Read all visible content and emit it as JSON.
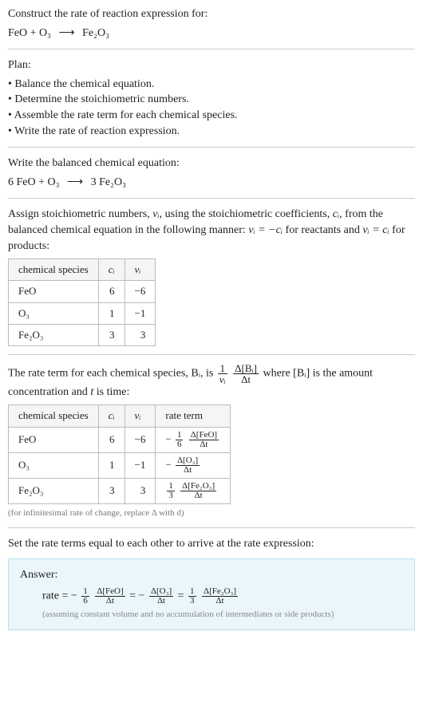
{
  "page": {
    "background_color": "#ffffff",
    "text_color": "#222222",
    "border_color": "#cccccc",
    "table_border_color": "#bbbbbb",
    "table_header_bg": "#f5f5f5",
    "footnote_color": "#777777",
    "answer_bg": "#eaf6fa",
    "answer_border": "#bde0ec",
    "font_family": "Georgia, serif",
    "body_fontsize": 14,
    "table_fontsize": 13,
    "frac_fontsize": 11,
    "footnote_fontsize": 11
  },
  "prompt": {
    "title": "Construct the rate of reaction expression for:",
    "eq_lhs": "FeO + O₃",
    "eq_arrow": "⟶",
    "eq_rhs": "Fe₂O₃"
  },
  "plan": {
    "title": "Plan:",
    "items": [
      "Balance the chemical equation.",
      "Determine the stoichiometric numbers.",
      "Assemble the rate term for each chemical species.",
      "Write the rate of reaction expression."
    ]
  },
  "balanced": {
    "title": "Write the balanced chemical equation:",
    "eq_lhs": "6 FeO + O₃",
    "eq_arrow": "⟶",
    "eq_rhs": "3 Fe₂O₃"
  },
  "stoich_intro": {
    "p1a": "Assign stoichiometric numbers, ",
    "nu": "νᵢ",
    "p1b": ", using the stoichiometric coefficients, ",
    "ci": "cᵢ",
    "p1c": ", from the balanced chemical equation in the following manner: ",
    "rel_react": "νᵢ = −cᵢ",
    "p1d": " for reactants and ",
    "rel_prod": "νᵢ = cᵢ",
    "p1e": " for products:"
  },
  "stoich_table": {
    "headers": {
      "h1": "chemical species",
      "h2": "cᵢ",
      "h3": "νᵢ"
    },
    "rows": [
      {
        "species": "FeO",
        "ci": "6",
        "nui": "−6"
      },
      {
        "species": "O₃",
        "ci": "1",
        "nui": "−1"
      },
      {
        "species": "Fe₂O₃",
        "ci": "3",
        "nui": "3"
      }
    ]
  },
  "rate_intro": {
    "p1a": "The rate term for each chemical species, ",
    "bi": "Bᵢ",
    "p1b": ", is ",
    "frac1_n": "1",
    "frac1_d": "νᵢ",
    "frac2_n": "Δ[Bᵢ]",
    "frac2_d": "Δt",
    "p1c": " where [Bᵢ] is the amount concentration and ",
    "t": "t",
    "p1d": " is time:"
  },
  "rate_table": {
    "headers": {
      "h1": "chemical species",
      "h2": "cᵢ",
      "h3": "νᵢ",
      "h4": "rate term"
    },
    "rows": [
      {
        "species": "FeO",
        "ci": "6",
        "nui": "−6",
        "rt_sign": "−",
        "rt_f1n": "1",
        "rt_f1d": "6",
        "rt_f2n": "Δ[FeO]",
        "rt_f2d": "Δt"
      },
      {
        "species": "O₃",
        "ci": "1",
        "nui": "−1",
        "rt_sign": "−",
        "rt_f1n": "",
        "rt_f1d": "",
        "rt_f2n": "Δ[O₃]",
        "rt_f2d": "Δt"
      },
      {
        "species": "Fe₂O₃",
        "ci": "3",
        "nui": "3",
        "rt_sign": "",
        "rt_f1n": "1",
        "rt_f1d": "3",
        "rt_f2n": "Δ[Fe₂O₃]",
        "rt_f2d": "Δt"
      }
    ],
    "footnote": "(for infinitesimal rate of change, replace Δ with d)"
  },
  "equal_text": "Set the rate terms equal to each other to arrive at the rate expression:",
  "answer": {
    "label": "Answer:",
    "lhs": "rate = ",
    "terms": [
      {
        "sign": "−",
        "f1n": "1",
        "f1d": "6",
        "f2n": "Δ[FeO]",
        "f2d": "Δt"
      },
      {
        "sign": "−",
        "f1n": "",
        "f1d": "",
        "f2n": "Δ[O₃]",
        "f2d": "Δt"
      },
      {
        "sign": "",
        "f1n": "1",
        "f1d": "3",
        "f2n": "Δ[Fe₂O₃]",
        "f2d": "Δt"
      }
    ],
    "eq": " = ",
    "assumption": "(assuming constant volume and no accumulation of intermediates or side products)"
  }
}
